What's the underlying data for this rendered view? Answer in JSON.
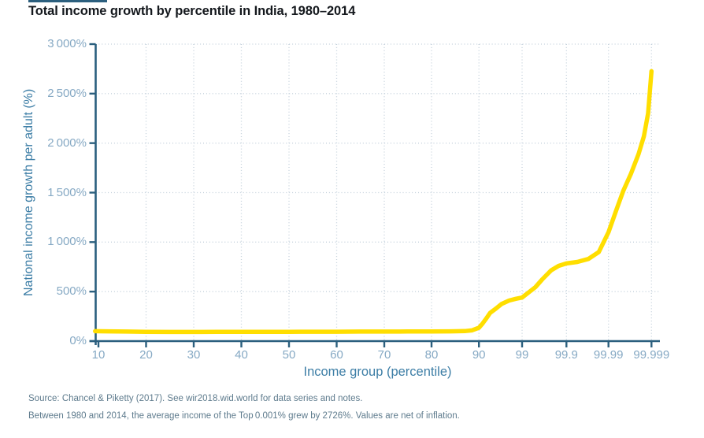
{
  "chart_data": {
    "type": "line",
    "title": "Total income growth by percentile in India, 1980–2014",
    "xlabel": "Income group (percentile)",
    "ylabel": "National income growth per adult (%)",
    "x_tick_labels": [
      "10",
      "20",
      "30",
      "40",
      "50",
      "60",
      "70",
      "80",
      "90",
      "99",
      "99.9",
      "99.99",
      "99.999"
    ],
    "y_tick_labels": [
      "0%",
      "500%",
      "1 000%",
      "1 500%",
      "2 000%",
      "2 500%",
      "3 000%"
    ],
    "ylim": [
      0,
      3000
    ],
    "y_step": 500,
    "x_scale_note": "linear from percentile 10 to 90, then logarithmic per decade of (100 - p) up to 99.999",
    "grid": "dotted horizontal and vertical gridlines",
    "legend": "none",
    "series": [
      {
        "name": "Total income growth by percentile, India 1980-2014",
        "color": "#FFDE00",
        "points": [
          [
            9.3,
            100
          ],
          [
            12,
            99
          ],
          [
            16,
            96
          ],
          [
            20,
            93
          ],
          [
            25,
            92
          ],
          [
            30,
            92
          ],
          [
            35,
            93
          ],
          [
            40,
            94
          ],
          [
            45,
            94
          ],
          [
            50,
            94
          ],
          [
            55,
            95
          ],
          [
            60,
            95
          ],
          [
            65,
            96
          ],
          [
            70,
            96
          ],
          [
            75,
            97
          ],
          [
            80,
            98
          ],
          [
            84,
            99
          ],
          [
            87,
            101
          ],
          [
            88.5,
            108
          ],
          [
            90,
            135
          ],
          [
            91.5,
            170
          ],
          [
            93,
            220
          ],
          [
            94.5,
            285
          ],
          [
            96,
            330
          ],
          [
            97,
            375
          ],
          [
            98,
            410
          ],
          [
            98.6,
            427
          ],
          [
            99,
            440
          ],
          [
            99.5,
            545
          ],
          [
            99.65,
            625
          ],
          [
            99.78,
            715
          ],
          [
            99.85,
            760
          ],
          [
            99.9,
            785
          ],
          [
            99.945,
            800
          ],
          [
            99.97,
            830
          ],
          [
            99.983,
            900
          ],
          [
            99.99,
            1100
          ],
          [
            99.9935,
            1330
          ],
          [
            99.9955,
            1520
          ],
          [
            99.997,
            1690
          ],
          [
            99.998,
            1890
          ],
          [
            99.9985,
            2070
          ],
          [
            99.9988,
            2300
          ],
          [
            99.999,
            2726
          ]
        ]
      }
    ],
    "key_values": {
      "top_0_001_percent_growth": "2726%"
    }
  },
  "footer": {
    "source_line": "Source: Chancel & Piketty (2017). See wir2018.wid.world for data series and notes.",
    "note_line": "Between 1980 and 2014, the average income of the Top 0.001% grew by 2726%. Values are net of inflation."
  },
  "colors": {
    "axis": "#2B5F7E",
    "tick_label": "#86A9C4",
    "axis_title": "#3D7EA6",
    "grid_dots": "#C3D0DB",
    "line": "#FFDE00",
    "title_text": "#14181d",
    "footer_text": "#5E7B8D",
    "accent_rule": "#2B5F7E"
  }
}
